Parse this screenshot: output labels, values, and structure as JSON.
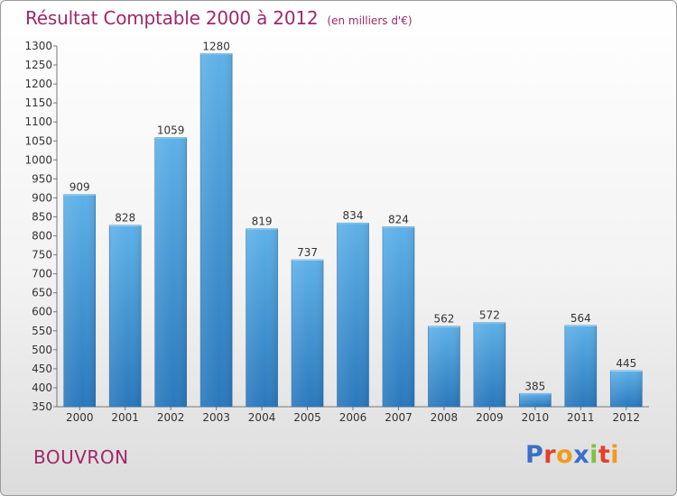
{
  "header": {
    "title": "Résultat Comptable 2000 à 2012",
    "unit": "(en milliers d'€)"
  },
  "location": {
    "name": "BOUVRON"
  },
  "brand": {
    "letters": [
      "P",
      "r",
      "o",
      "x",
      "i",
      "t",
      "i"
    ]
  },
  "colors": {
    "title": "#a0286a",
    "bar_top": "#5aaee6",
    "bar_bottom": "#2c7bbf"
  },
  "chart_data": {
    "type": "bar",
    "title": "Résultat Comptable 2000 à 2012",
    "subtitle": "(en milliers d'€)",
    "xlabel": "",
    "ylabel": "",
    "categories": [
      "2000",
      "2001",
      "2002",
      "2003",
      "2004",
      "2005",
      "2006",
      "2007",
      "2008",
      "2009",
      "2010",
      "2011",
      "2012"
    ],
    "values": [
      909,
      828,
      1059,
      1280,
      819,
      737,
      834,
      824,
      562,
      572,
      385,
      564,
      445
    ],
    "ylim": [
      350,
      1300
    ],
    "yticks": [
      350,
      400,
      450,
      500,
      550,
      600,
      650,
      700,
      750,
      800,
      850,
      900,
      950,
      1000,
      1050,
      1100,
      1150,
      1200,
      1250,
      1300
    ],
    "grid": false,
    "legend": "none"
  }
}
